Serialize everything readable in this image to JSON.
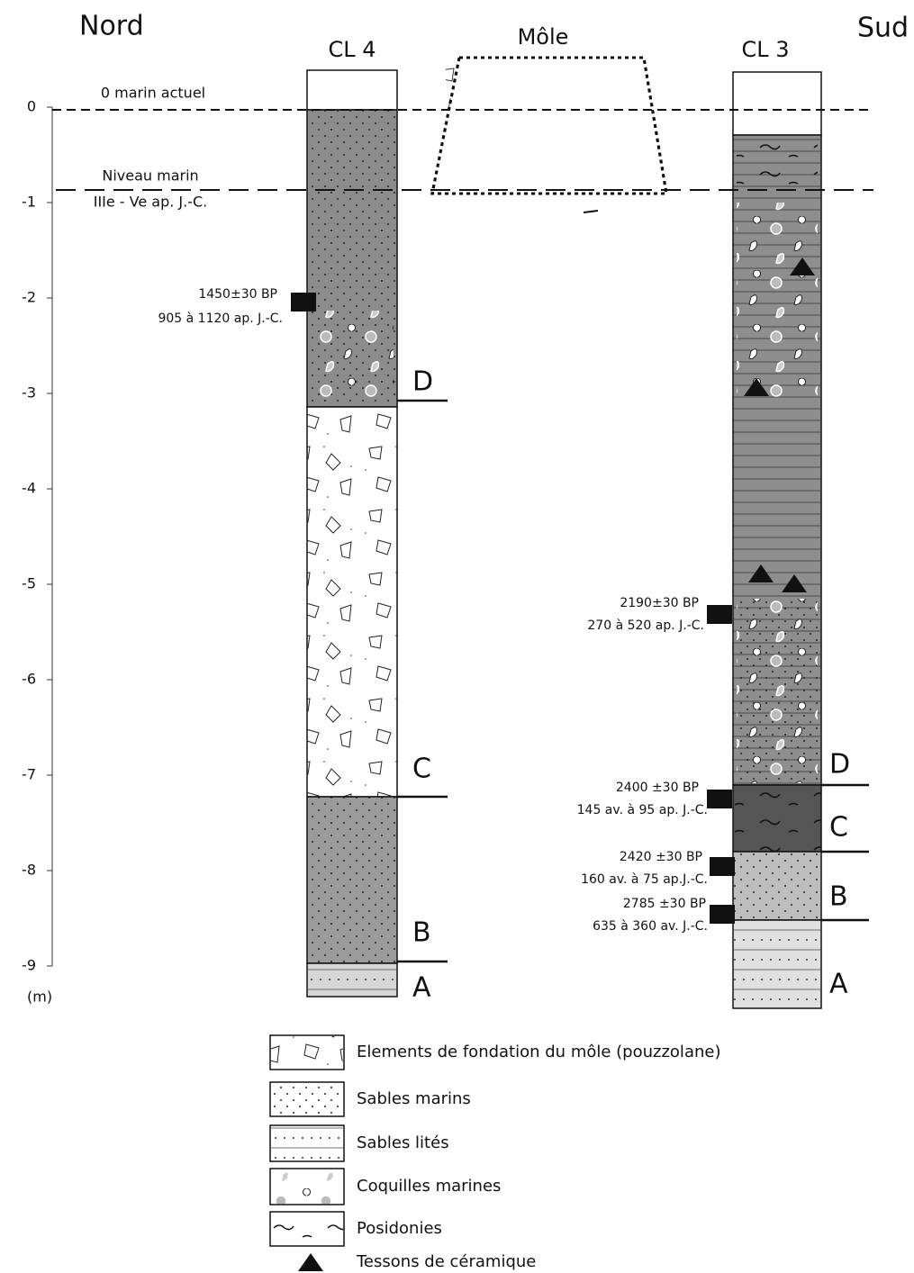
{
  "header": {
    "left": "Nord",
    "right": "Sud",
    "mole": "Môle"
  },
  "axis": {
    "ticks": [
      "0",
      "-1",
      "-2",
      "-3",
      "-4",
      "-5",
      "-6",
      "-7",
      "-8",
      "-9"
    ],
    "unit": "(m)"
  },
  "sea_levels": [
    {
      "label": "0 marin actuel"
    },
    {
      "label": "Niveau marin",
      "sublabel": "IIIe - Ve ap. J.-C."
    }
  ],
  "cores": [
    {
      "name": "CL 4",
      "units": [
        "D",
        "C",
        "B",
        "A"
      ],
      "dates": [
        {
          "bp": "1450±30 BP",
          "cal": "905 à 1120 ap. J.-C."
        }
      ]
    },
    {
      "name": "CL 3",
      "units": [
        "D",
        "C",
        "B",
        "A"
      ],
      "dates": [
        {
          "bp": "2190±30 BP",
          "cal": "270 à 520 ap. J.-C."
        },
        {
          "bp": "2400 ±30 BP",
          "cal": "145 av. à 95 ap. J.-C."
        },
        {
          "bp": "2420 ±30 BP",
          "cal": "160 av. à 75 ap.J.-C."
        },
        {
          "bp": "2785 ±30 BP",
          "cal": "635 à 360 av. J.-C."
        }
      ]
    }
  ],
  "legend": [
    "Elements de fondation du môle (pouzzolane)",
    "Sables marins",
    "Sables lités",
    "Coquilles marines",
    "Posidonies",
    "Tessons de céramique"
  ]
}
